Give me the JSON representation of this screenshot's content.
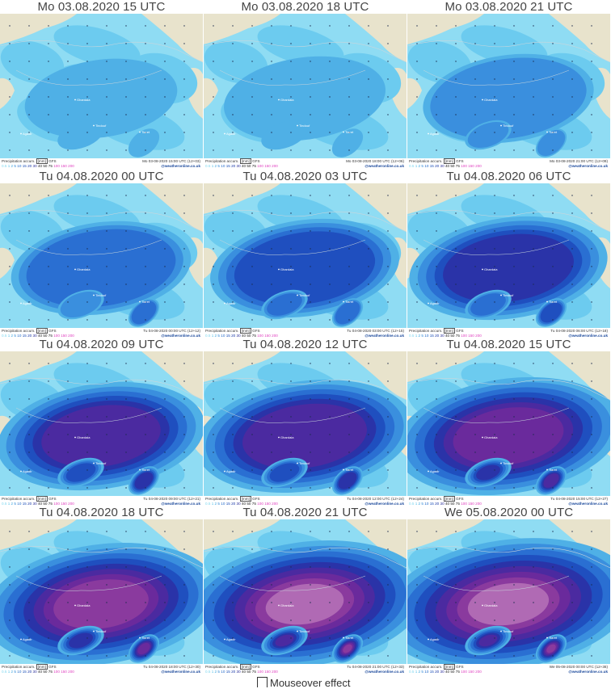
{
  "panels": [
    {
      "title": "Mo 03.08.2020   15 UTC",
      "valid": "Mo 03-08-2020 15:00 UTC (12+03)",
      "level": 0
    },
    {
      "title": "Mo 03.08.2020   18 UTC",
      "valid": "Mo 03-08-2020 18:00 UTC (12+06)",
      "level": 1
    },
    {
      "title": "Mo 03.08.2020   21 UTC",
      "valid": "Mo 03-08-2020 21:00 UTC (12+09)",
      "level": 2
    },
    {
      "title": "Tu 04.08.2020   00 UTC",
      "valid": "Tu 04-08-2020 00:00 UTC (12+12)",
      "level": 3
    },
    {
      "title": "Tu 04.08.2020   03 UTC",
      "valid": "Tu 04-08-2020 03:00 UTC (12+15)",
      "level": 4
    },
    {
      "title": "Tu 04.08.2020   06 UTC",
      "valid": "Tu 04-08-2020 06:00 UTC (12+18)",
      "level": 5
    },
    {
      "title": "Tu 04.08.2020   09 UTC",
      "valid": "Tu 04-08-2020 09:00 UTC (12+21)",
      "level": 6
    },
    {
      "title": "Tu 04.08.2020   12 UTC",
      "valid": "Tu 04-08-2020 12:00 UTC (12+24)",
      "level": 7
    },
    {
      "title": "Tu 04.08.2020   15 UTC",
      "valid": "Tu 04-08-2020 15:00 UTC (12+27)",
      "level": 8
    },
    {
      "title": "Tu 04.08.2020   18 UTC",
      "valid": "Tu 04-08-2020 18:00 UTC (12+30)",
      "level": 9
    },
    {
      "title": "Tu 04.08.2020   21 UTC",
      "valid": "Tu 04-08-2020 21:00 UTC (12+33)",
      "level": 10
    },
    {
      "title": "We 05.08.2020   00 UTC",
      "valid": "We 05-08-2020 00:00 UTC (12+36)",
      "level": 11
    }
  ],
  "footer": {
    "param": "Precipitation   accum.",
    "unit": "[mm]",
    "model": "GFS",
    "site": "@weatheronline.co.uk",
    "scale": [
      {
        "v": "0.5",
        "c": "#7fd8f0"
      },
      {
        "v": "1",
        "c": "#59c3ea"
      },
      {
        "v": "2",
        "c": "#3aa6e0"
      },
      {
        "v": "5",
        "c": "#2b86d6"
      },
      {
        "v": "10",
        "c": "#1f68c9"
      },
      {
        "v": "15",
        "c": "#1a4fb8"
      },
      {
        "v": "20",
        "c": "#1838a6"
      },
      {
        "v": "30",
        "c": "#2b2f9a"
      },
      {
        "v": "40",
        "c": "#222222"
      },
      {
        "v": "50",
        "c": "#222222"
      },
      {
        "v": "75",
        "c": "#222222"
      },
      {
        "v": "100",
        "c": "#e040c0"
      },
      {
        "v": "150",
        "c": "#e040c0"
      },
      {
        "v": "200",
        "c": "#e040c0"
      }
    ]
  },
  "map_labels": {
    "city_north": "Ghardaia",
    "city_mid": "Tindouf",
    "city_west": "Agadir",
    "city_south": "Tiaret"
  },
  "colors": {
    "sea": "#8fdcf3",
    "land": "#e8e3cc",
    "rain_levels": [
      "#6ccbef",
      "#4fb0e6",
      "#3a8fde",
      "#2a6fd2",
      "#1f4fbf",
      "#2a33a8",
      "#4b2aa0",
      "#6a2a9c",
      "#8a3a9e",
      "#b06ab4"
    ]
  },
  "mouseover": {
    "label": "Mouseover effect"
  }
}
